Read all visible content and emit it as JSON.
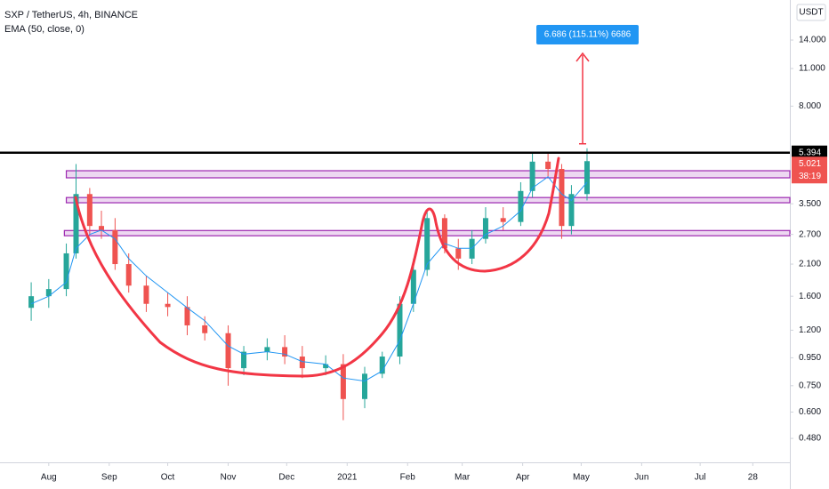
{
  "chart_data": {
    "type": "candlestick",
    "title": "SXP / TetherUS, 4h, BINANCE",
    "indicator": "EMA (50, close, 0)",
    "axis_unit": "USDT",
    "log_scale": true,
    "x": [
      -9,
      0,
      9,
      14,
      21,
      27,
      34,
      41,
      50,
      61,
      71,
      80,
      92,
      100,
      112,
      121,
      130,
      142,
      151,
      162,
      171,
      180,
      187,
      194,
      203,
      210,
      217,
      224,
      233,
      242,
      248,
      256,
      263,
      268,
      276
    ],
    "open": [
      1.45,
      1.6,
      1.7,
      2.3,
      3.8,
      2.9,
      2.8,
      2.1,
      1.75,
      1.5,
      1.46,
      1.25,
      1.17,
      0.87,
      1.0,
      1.04,
      0.96,
      0.87,
      0.9,
      0.67,
      0.83,
      0.96,
      1.5,
      2.0,
      3.1,
      2.4,
      2.2,
      2.6,
      3.1,
      3.0,
      3.9,
      5.0,
      4.7,
      2.9,
      3.8
    ],
    "high": [
      1.8,
      1.85,
      2.5,
      4.9,
      4.0,
      3.3,
      3.1,
      2.3,
      1.9,
      1.65,
      1.6,
      1.35,
      1.25,
      1.05,
      1.12,
      1.15,
      1.05,
      0.97,
      0.98,
      0.88,
      1.0,
      1.6,
      2.2,
      3.3,
      3.2,
      2.6,
      2.8,
      3.4,
      3.4,
      4.2,
      5.4,
      5.4,
      4.9,
      4.1,
      5.6
    ],
    "low": [
      1.3,
      1.45,
      1.6,
      2.2,
      2.7,
      2.6,
      2.0,
      1.65,
      1.4,
      1.35,
      1.15,
      1.1,
      0.75,
      0.82,
      0.93,
      0.9,
      0.8,
      0.82,
      0.56,
      0.62,
      0.8,
      0.9,
      1.4,
      1.9,
      2.3,
      2.0,
      2.1,
      2.5,
      2.8,
      2.9,
      3.7,
      4.4,
      2.6,
      2.7,
      3.6
    ],
    "close": [
      1.6,
      1.7,
      2.3,
      3.8,
      2.9,
      2.8,
      2.1,
      1.75,
      1.5,
      1.46,
      1.25,
      1.17,
      0.87,
      1.0,
      1.04,
      0.96,
      0.87,
      0.9,
      0.67,
      0.83,
      0.96,
      1.5,
      2.0,
      3.1,
      2.4,
      2.2,
      2.6,
      3.1,
      3.0,
      3.9,
      5.0,
      4.7,
      2.9,
      3.8,
      5.021
    ],
    "ema": [
      1.5,
      1.6,
      1.8,
      2.4,
      2.7,
      2.8,
      2.6,
      2.2,
      1.9,
      1.65,
      1.45,
      1.3,
      1.05,
      0.98,
      1.0,
      0.98,
      0.92,
      0.9,
      0.8,
      0.78,
      0.85,
      1.1,
      1.5,
      2.1,
      2.5,
      2.4,
      2.4,
      2.7,
      2.9,
      3.3,
      4.0,
      4.4,
      3.8,
      3.6,
      4.2
    ],
    "up_color": "#26a69a",
    "down_color": "#ef5350",
    "ema_color": "#2196f3",
    "xlim": [
      -25,
      380
    ],
    "xticks": [
      {
        "value": 0,
        "label": "Aug"
      },
      {
        "value": 31,
        "label": "Sep"
      },
      {
        "value": 61,
        "label": "Oct"
      },
      {
        "value": 92,
        "label": "Nov"
      },
      {
        "value": 122,
        "label": "Dec"
      },
      {
        "value": 153,
        "label": "2021"
      },
      {
        "value": 184,
        "label": "Feb"
      },
      {
        "value": 212,
        "label": "Mar"
      },
      {
        "value": 243,
        "label": "Apr"
      },
      {
        "value": 273,
        "label": "May"
      },
      {
        "value": 304,
        "label": "Jun"
      },
      {
        "value": 334,
        "label": "Jul"
      },
      {
        "value": 361,
        "label": "28"
      }
    ],
    "ylim": [
      0.392,
      19.65
    ],
    "yticks": [
      {
        "value": 14,
        "label": "14.000"
      },
      {
        "value": 11,
        "label": "11.000"
      },
      {
        "value": 8,
        "label": "8.000"
      },
      {
        "value": 3.5,
        "label": "3.500"
      },
      {
        "value": 2.7,
        "label": "2.700"
      },
      {
        "value": 2.1,
        "label": "2.100"
      },
      {
        "value": 1.6,
        "label": "1.600"
      },
      {
        "value": 1.2,
        "label": "1.200"
      },
      {
        "value": 0.95,
        "label": "0.950"
      },
      {
        "value": 0.75,
        "label": "0.750"
      },
      {
        "value": 0.6,
        "label": "0.600"
      },
      {
        "value": 0.48,
        "label": "0.480"
      }
    ],
    "resistance": 5.394,
    "last_price": 5.021,
    "countdown": "38:19",
    "zones": [
      {
        "low": 4.36,
        "high": 4.63,
        "start": 9
      },
      {
        "low": 3.53,
        "high": 3.69,
        "start": 9
      },
      {
        "low": 2.67,
        "high": 2.79,
        "start": 8
      }
    ],
    "zone_color": "#e1bee7",
    "zone_border": "#9c27b0",
    "target_label": "6.686 (115.11%) 6686"
  }
}
